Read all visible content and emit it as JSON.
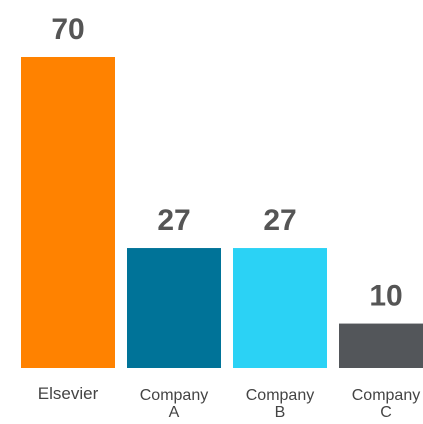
{
  "chart_data": {
    "type": "bar",
    "categories": [
      [
        "Elsevier"
      ],
      [
        "Company",
        "A"
      ],
      [
        "Company",
        "B"
      ],
      [
        "Company",
        "C"
      ]
    ],
    "values": [
      70,
      27,
      27,
      10
    ],
    "value_labels": [
      "70",
      "27",
      "27",
      "10"
    ],
    "colors": [
      "#ff8200",
      "#007398",
      "#2bd2f5",
      "#53565a"
    ],
    "title": "",
    "xlabel": "",
    "ylabel": "",
    "ylim": [
      0,
      70
    ],
    "grid": false,
    "legend": "none"
  }
}
